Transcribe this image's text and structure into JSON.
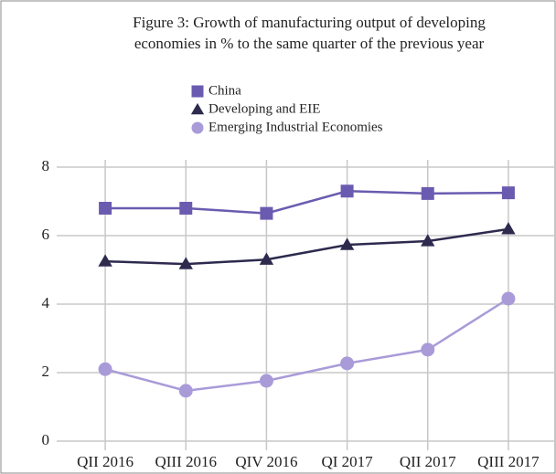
{
  "chart_data": {
    "type": "line",
    "title": [
      "Figure 3: Growth of manufacturing output of developing",
      "economies in % to the same quarter of the previous year"
    ],
    "categories": [
      "QII 2016",
      "QIII 2016",
      "QIV 2016",
      "QI 2017",
      "QII 2017",
      "QIII 2017"
    ],
    "series": [
      {
        "name": "China",
        "color": "#6b5bb0",
        "marker": "square",
        "values": [
          6.8,
          6.8,
          6.65,
          7.3,
          7.23,
          7.25
        ]
      },
      {
        "name": "Developing and EIE",
        "color": "#2d2a4e",
        "marker": "triangle",
        "values": [
          5.25,
          5.17,
          5.3,
          5.73,
          5.84,
          6.19
        ]
      },
      {
        "name": "Emerging Industrial Economies",
        "color": "#a99bd8",
        "marker": "circle",
        "values": [
          2.1,
          1.47,
          1.76,
          2.27,
          2.67,
          4.16
        ]
      }
    ],
    "ylim": [
      0,
      8
    ],
    "yticks": [
      0,
      2,
      4,
      6,
      8
    ],
    "grid": true
  }
}
